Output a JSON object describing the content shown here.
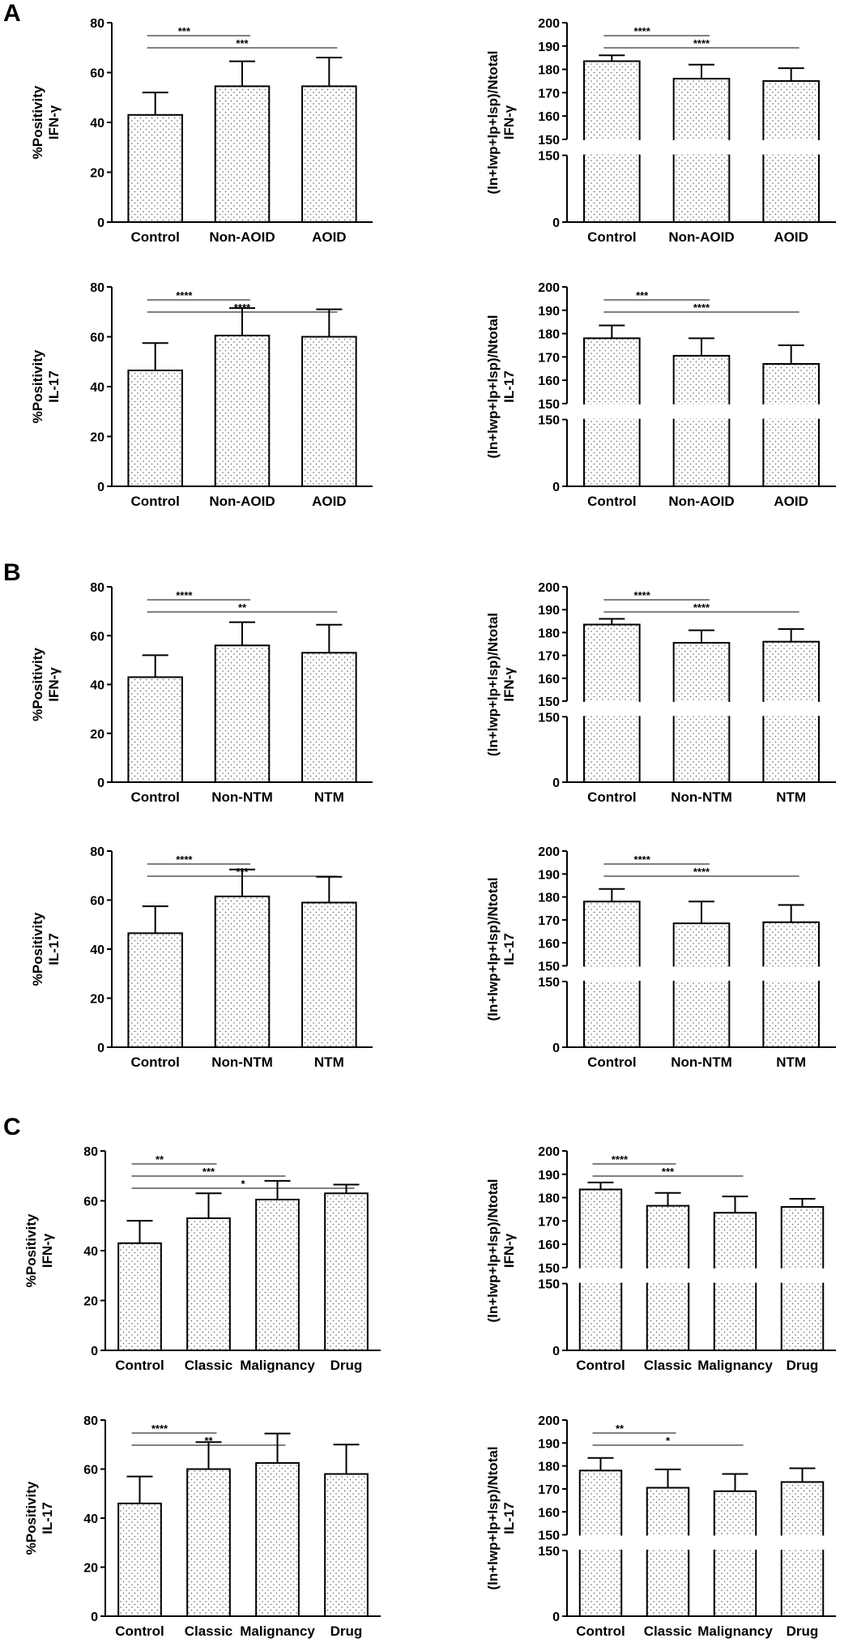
{
  "panel_labels": [
    "A",
    "B",
    "C"
  ],
  "chart_data": [
    {
      "id": "A1",
      "type": "bar",
      "panel": "A",
      "scale": "simple",
      "ylabel_lines": [
        "%Positivity",
        "IFN-γ"
      ],
      "ylim": [
        0,
        80
      ],
      "ticks": [
        "0",
        "20",
        "40",
        "60",
        "80"
      ],
      "categories": [
        "Control",
        "Non-AOID",
        "AOID"
      ],
      "values": [
        43,
        54.5,
        54.5
      ],
      "errors": [
        9,
        10,
        11.5
      ],
      "significance": [
        {
          "from": "Control",
          "to": "Non-AOID",
          "label": "***"
        },
        {
          "from": "Control",
          "to": "AOID",
          "label": "***"
        }
      ]
    },
    {
      "id": "A2",
      "type": "bar",
      "panel": "A",
      "scale": "broken",
      "ylabel_lines": [
        "(ln+lwp+lp+lsp)/Ntotal",
        "IFN-γ"
      ],
      "ylim": [
        0,
        200
      ],
      "break": [
        150,
        150
      ],
      "ticks_low": [
        "0",
        "150"
      ],
      "ticks_high": [
        "150",
        "160",
        "170",
        "180",
        "190",
        "200"
      ],
      "categories": [
        "Control",
        "Non-AOID",
        "AOID"
      ],
      "values": [
        183.5,
        176,
        175
      ],
      "errors": [
        2.5,
        6,
        5.5
      ],
      "significance": [
        {
          "from": "Control",
          "to": "Non-AOID",
          "label": "****"
        },
        {
          "from": "Control",
          "to": "AOID",
          "label": "****"
        }
      ]
    },
    {
      "id": "A3",
      "type": "bar",
      "panel": "A",
      "scale": "simple",
      "ylabel_lines": [
        "%Positivity",
        "IL-17"
      ],
      "ylim": [
        0,
        80
      ],
      "ticks": [
        "0",
        "20",
        "40",
        "60",
        "80"
      ],
      "categories": [
        "Control",
        "Non-AOID",
        "AOID"
      ],
      "values": [
        46.5,
        60.5,
        60
      ],
      "errors": [
        11,
        11,
        11
      ],
      "significance": [
        {
          "from": "Control",
          "to": "Non-AOID",
          "label": "****"
        },
        {
          "from": "Control",
          "to": "AOID",
          "label": "****"
        }
      ]
    },
    {
      "id": "A4",
      "type": "bar",
      "panel": "A",
      "scale": "broken",
      "ylabel_lines": [
        "(ln+lwp+lp+lsp)/Ntotal",
        "IL-17"
      ],
      "ylim": [
        0,
        200
      ],
      "break": [
        150,
        150
      ],
      "ticks_low": [
        "0",
        "150"
      ],
      "ticks_high": [
        "150",
        "160",
        "170",
        "180",
        "190",
        "200"
      ],
      "categories": [
        "Control",
        "Non-AOID",
        "AOID"
      ],
      "values": [
        178,
        170.5,
        167
      ],
      "errors": [
        5.5,
        7.5,
        8
      ],
      "significance": [
        {
          "from": "Control",
          "to": "Non-AOID",
          "label": "***"
        },
        {
          "from": "Control",
          "to": "AOID",
          "label": "****"
        }
      ]
    },
    {
      "id": "B1",
      "type": "bar",
      "panel": "B",
      "scale": "simple",
      "ylabel_lines": [
        "%Positivity",
        "IFN-γ"
      ],
      "ylim": [
        0,
        80
      ],
      "ticks": [
        "0",
        "20",
        "40",
        "60",
        "80"
      ],
      "categories": [
        "Control",
        "Non-NTM",
        "NTM"
      ],
      "values": [
        43,
        56,
        53
      ],
      "errors": [
        9,
        9.5,
        11.5
      ],
      "significance": [
        {
          "from": "Control",
          "to": "Non-NTM",
          "label": "****"
        },
        {
          "from": "Control",
          "to": "NTM",
          "label": "**"
        }
      ]
    },
    {
      "id": "B2",
      "type": "bar",
      "panel": "B",
      "scale": "broken",
      "ylabel_lines": [
        "(ln+lwp+lp+lsp)/Ntotal",
        "IFN-γ"
      ],
      "ylim": [
        0,
        200
      ],
      "break": [
        150,
        150
      ],
      "ticks_low": [
        "0",
        "150"
      ],
      "ticks_high": [
        "150",
        "160",
        "170",
        "180",
        "190",
        "200"
      ],
      "categories": [
        "Control",
        "Non-NTM",
        "NTM"
      ],
      "values": [
        183.5,
        175.5,
        176
      ],
      "errors": [
        2.5,
        5.5,
        5.5
      ],
      "significance": [
        {
          "from": "Control",
          "to": "Non-NTM",
          "label": "****"
        },
        {
          "from": "Control",
          "to": "NTM",
          "label": "****"
        }
      ]
    },
    {
      "id": "B3",
      "type": "bar",
      "panel": "B",
      "scale": "simple",
      "ylabel_lines": [
        "%Positivity",
        "IL-17"
      ],
      "ylim": [
        0,
        80
      ],
      "ticks": [
        "0",
        "20",
        "40",
        "60",
        "80"
      ],
      "categories": [
        "Control",
        "Non-NTM",
        "NTM"
      ],
      "values": [
        46.5,
        61.5,
        59
      ],
      "errors": [
        11,
        11,
        10.5
      ],
      "significance": [
        {
          "from": "Control",
          "to": "Non-NTM",
          "label": "****"
        },
        {
          "from": "Control",
          "to": "NTM",
          "label": "***"
        }
      ]
    },
    {
      "id": "B4",
      "type": "bar",
      "panel": "B",
      "scale": "broken",
      "ylabel_lines": [
        "(ln+lwp+lp+lsp)/Ntotal",
        "IL-17"
      ],
      "ylim": [
        0,
        200
      ],
      "break": [
        150,
        150
      ],
      "ticks_low": [
        "0",
        "150"
      ],
      "ticks_high": [
        "150",
        "160",
        "170",
        "180",
        "190",
        "200"
      ],
      "categories": [
        "Control",
        "Non-NTM",
        "NTM"
      ],
      "values": [
        178,
        168.5,
        169
      ],
      "errors": [
        5.5,
        9.5,
        7.5
      ],
      "significance": [
        {
          "from": "Control",
          "to": "Non-NTM",
          "label": "****"
        },
        {
          "from": "Control",
          "to": "NTM",
          "label": "****"
        }
      ]
    },
    {
      "id": "C1",
      "type": "bar",
      "panel": "C",
      "scale": "simple",
      "ylabel_lines": [
        "%Positivity",
        "IFN-γ"
      ],
      "ylim": [
        0,
        80
      ],
      "ticks": [
        "0",
        "20",
        "40",
        "60",
        "80"
      ],
      "categories": [
        "Control",
        "Classic",
        "Malignancy",
        "Drug"
      ],
      "values": [
        43,
        53,
        60.5,
        63
      ],
      "errors": [
        9,
        10,
        7.5,
        3.5
      ],
      "significance": [
        {
          "from": "Control",
          "to": "Classic",
          "label": "**"
        },
        {
          "from": "Control",
          "to": "Malignancy",
          "label": "***"
        },
        {
          "from": "Control",
          "to": "Drug",
          "label": "*"
        }
      ]
    },
    {
      "id": "C2",
      "type": "bar",
      "panel": "C",
      "scale": "broken",
      "ylabel_lines": [
        "(ln+lwp+lp+lsp)/Ntotal",
        "IFN-γ"
      ],
      "ylim": [
        0,
        200
      ],
      "break": [
        150,
        150
      ],
      "ticks_low": [
        "0",
        "150"
      ],
      "ticks_high": [
        "150",
        "160",
        "170",
        "180",
        "190",
        "200"
      ],
      "categories": [
        "Control",
        "Classic",
        "Malignancy",
        "Drug"
      ],
      "values": [
        183.5,
        176.5,
        173.5,
        176
      ],
      "errors": [
        3,
        5.5,
        7,
        3.5
      ],
      "significance": [
        {
          "from": "Control",
          "to": "Classic",
          "label": "****"
        },
        {
          "from": "Control",
          "to": "Malignancy",
          "label": "***"
        }
      ]
    },
    {
      "id": "C3",
      "type": "bar",
      "panel": "C",
      "scale": "simple",
      "ylabel_lines": [
        "%Positivity",
        "IL-17"
      ],
      "ylim": [
        0,
        80
      ],
      "ticks": [
        "0",
        "20",
        "40",
        "60",
        "80"
      ],
      "categories": [
        "Control",
        "Classic",
        "Malignancy",
        "Drug"
      ],
      "values": [
        46,
        60,
        62.5,
        58
      ],
      "errors": [
        11,
        11,
        12,
        12
      ],
      "significance": [
        {
          "from": "Control",
          "to": "Classic",
          "label": "****"
        },
        {
          "from": "Control",
          "to": "Malignancy",
          "label": "**"
        }
      ]
    },
    {
      "id": "C4",
      "type": "bar",
      "panel": "C",
      "scale": "broken",
      "ylabel_lines": [
        "(ln+lwp+lp+lsp)/Ntotal",
        "IL-17"
      ],
      "ylim": [
        0,
        200
      ],
      "break": [
        150,
        150
      ],
      "ticks_low": [
        "0",
        "150"
      ],
      "ticks_high": [
        "150",
        "160",
        "170",
        "180",
        "190",
        "200"
      ],
      "categories": [
        "Control",
        "Classic",
        "Malignancy",
        "Drug"
      ],
      "values": [
        178,
        170.5,
        169,
        173
      ],
      "errors": [
        5.5,
        8,
        7.5,
        6
      ],
      "significance": [
        {
          "from": "Control",
          "to": "Classic",
          "label": "**"
        },
        {
          "from": "Control",
          "to": "Malignancy",
          "label": "*"
        }
      ]
    }
  ]
}
